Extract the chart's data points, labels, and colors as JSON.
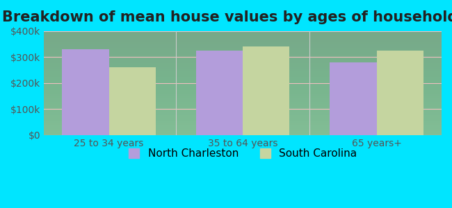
{
  "title": "Breakdown of mean house values by ages of householders",
  "categories": [
    "25 to 34 years",
    "35 to 64 years",
    "65 years+"
  ],
  "north_charleston": [
    330000,
    325000,
    280000
  ],
  "south_carolina": [
    260000,
    340000,
    325000
  ],
  "bar_color_nc": "#b39ddb",
  "bar_color_sc": "#c5d5a0",
  "background_outer": "#00e5ff",
  "background_inner": "#f0fdf0",
  "legend_nc": "North Charleston",
  "legend_sc": "South Carolina",
  "ylim": [
    0,
    400000
  ],
  "yticks": [
    0,
    100000,
    200000,
    300000,
    400000
  ],
  "grid_color": "#e8b0b0",
  "title_fontsize": 15,
  "tick_fontsize": 10,
  "legend_fontsize": 11
}
